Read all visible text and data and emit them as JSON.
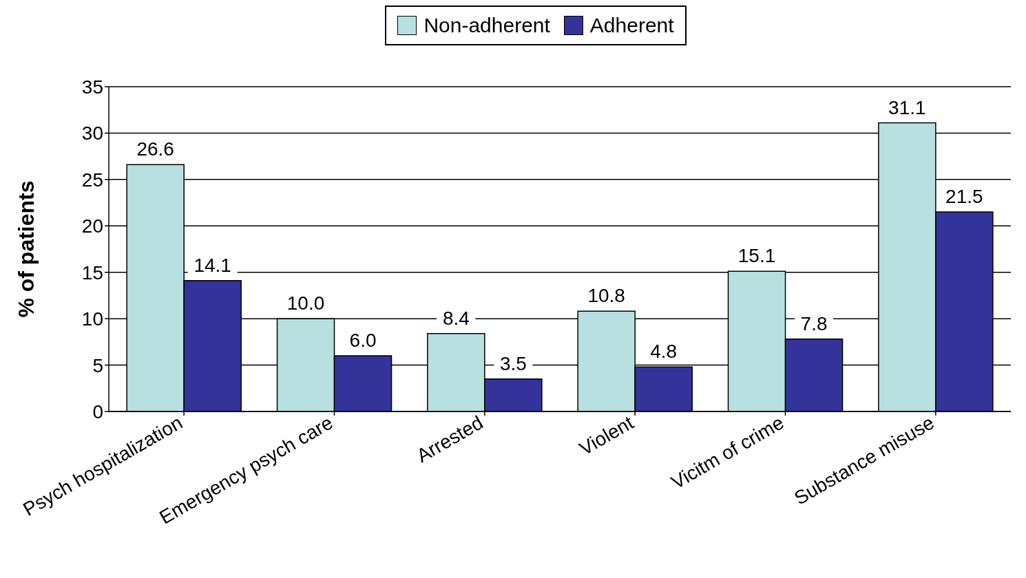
{
  "chart_data": {
    "type": "bar",
    "ylabel": "% of patients",
    "categories": [
      "Psych hospitalization",
      "Emergency psych care",
      "Arrested",
      "Violent",
      "Vicitm of crime",
      "Substance misuse"
    ],
    "series": [
      {
        "name": "Non-adherent",
        "color": "#b8e0e0",
        "values": [
          26.6,
          10.0,
          8.4,
          10.8,
          15.1,
          31.1
        ],
        "value_labels": [
          "26.6",
          "10.0",
          "8.4",
          "10.8",
          "15.1",
          "31.1"
        ]
      },
      {
        "name": "Adherent",
        "color": "#333399",
        "values": [
          14.1,
          6.0,
          3.5,
          4.8,
          7.8,
          21.5
        ],
        "value_labels": [
          "14.1",
          "6.0",
          "3.5",
          "4.8",
          "7.8",
          "21.5"
        ]
      }
    ],
    "ylim": [
      0,
      35
    ],
    "yticks": [
      0,
      5,
      10,
      15,
      20,
      25,
      30,
      35
    ],
    "grid": "y",
    "legend": "top"
  }
}
